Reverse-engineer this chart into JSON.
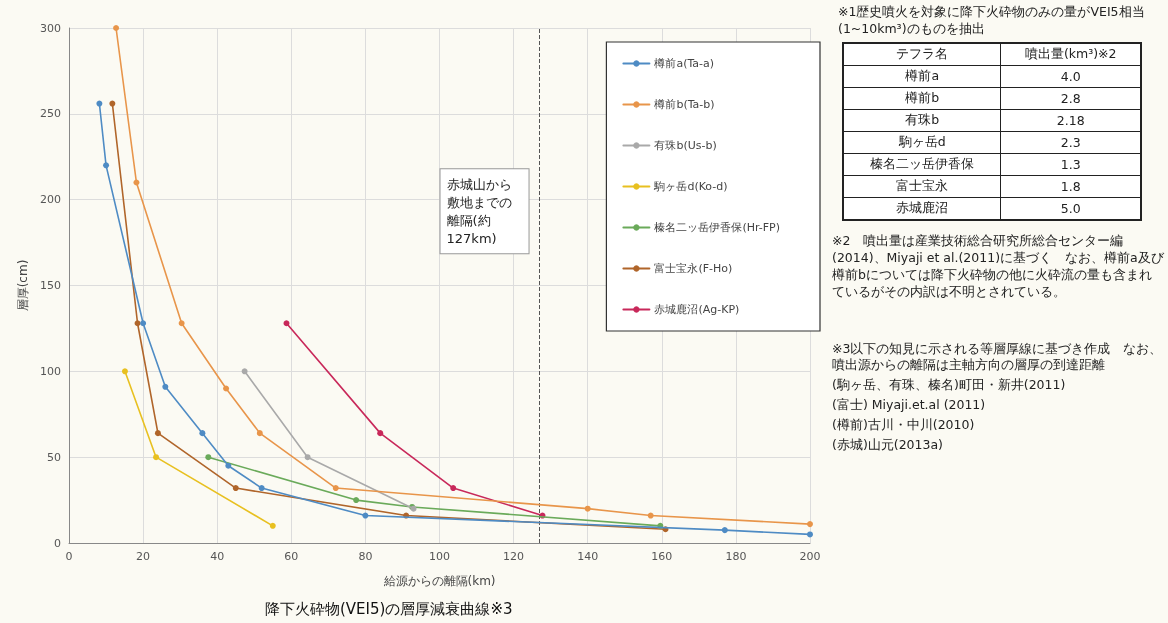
{
  "chart_data": [
    {
      "type": "line",
      "title": "降下火砕物(VEI5)の層厚減衰曲線※3",
      "xlabel": "給源からの離隔(km)",
      "ylabel": "層厚(cm)",
      "xlim": [
        0,
        200
      ],
      "xticks": [
        0,
        20,
        40,
        60,
        80,
        100,
        120,
        140,
        160,
        180,
        200
      ],
      "ylim": [
        0,
        300
      ],
      "yticks": [
        0,
        50,
        100,
        150,
        200,
        250,
        300
      ],
      "grid": true,
      "legend": "top right",
      "marker": "circle",
      "line_style": "solid",
      "series": [
        {
          "name": "樽前a(Ta-a)",
          "color": "#4e8bc4",
          "x": [
            8.2,
            10,
            20,
            26,
            36,
            43,
            52,
            80,
            177,
            200
          ],
          "values": [
            256,
            220,
            128,
            91,
            64,
            45,
            32,
            16,
            7.5,
            5
          ]
        },
        {
          "name": "樽前b(Ta-b)",
          "color": "#e8954a",
          "x": [
            12.7,
            18.2,
            30.4,
            42.4,
            51.5,
            72,
            140,
            157,
            200
          ],
          "values": [
            300,
            210,
            128,
            90,
            64,
            32,
            20,
            16,
            11
          ]
        },
        {
          "name": "有珠b(Us-b)",
          "color": "#a9a9a9",
          "x": [
            47.4,
            64.4,
            93
          ],
          "values": [
            100,
            50,
            20
          ]
        },
        {
          "name": "駒ヶ岳d(Ko-d)",
          "color": "#e8c020",
          "x": [
            15.1,
            23.5,
            55
          ],
          "values": [
            100,
            50,
            10
          ]
        },
        {
          "name": "榛名二ッ岳伊香保(Hr-FP)",
          "color": "#6aaa5a",
          "x": [
            37.6,
            77.5,
            92.6,
            159.6
          ],
          "values": [
            50,
            25,
            21,
            10
          ]
        },
        {
          "name": "富士宝永(F-Ho)",
          "color": "#b0652a",
          "x": [
            11.7,
            18.5,
            24,
            45,
            91,
            161
          ],
          "values": [
            256,
            128,
            64,
            32,
            16,
            8
          ]
        },
        {
          "name": "赤城鹿沼(Ag-KP)",
          "color": "#c8285a",
          "x": [
            58.7,
            84,
            103.7,
            127.8
          ],
          "values": [
            128,
            64,
            32,
            16
          ]
        }
      ],
      "ref_lines": [
        {
          "axis": "x",
          "value": 127,
          "label": "赤城山から敷地までの離隔(約127km)",
          "color": "#555555",
          "line_style": "dashed"
        }
      ]
    },
    {
      "type": "other",
      "title": "※1歴史噴火を対象に降下火砕物のみの量がVEI5相当(1~10km³)のものを抽出",
      "xlabel": "テフラ名",
      "ylabel": "噴出量(km³)※2",
      "categories": [
        "樽前a",
        "樽前b",
        "有珠b",
        "駒ヶ岳d",
        "榛名二ッ岳伊香保",
        "富士宝永",
        "赤城鹿沼"
      ],
      "value_labels": [
        "4.0",
        "2.8",
        "2.18",
        "2.3",
        "1.3",
        "1.8",
        "5.0"
      ],
      "annotations": [
        "※2　噴出量は産業技術総合研究所総合センター編(2014)、Miyaji et al.(2011)に基づく　なお、樽前a及び樽前bについては降下火砕物の他に火砕流の量も含まれているがその内訳は不明とされている。",
        "※3以下の知見に示される等層厚線に基づき作成　なお、噴出源からの離隔は主軸方向の層厚の到達距離",
        "(駒ヶ岳、有珠、榛名)町田・新井(2011)",
        "(富士) Miyaji.et.al (2011)",
        "(樽前)古川・中川(2010)",
        "(赤城)山元(2013a)"
      ]
    }
  ]
}
